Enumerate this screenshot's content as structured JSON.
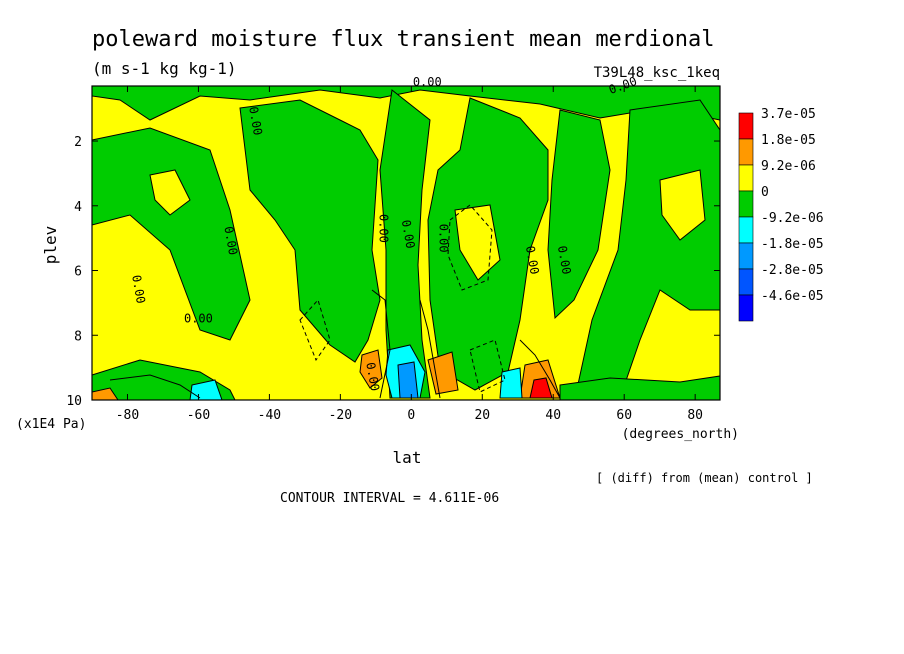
{
  "chart_data": {
    "type": "heatmap",
    "title": "poleward moisture flux transient mean merdional",
    "subtitle": "(m s-1 kg kg-1)",
    "run_label": "T39L48_ksc_1keq",
    "xlabel": "lat",
    "x_unit": "(degrees_north)",
    "ylabel": "plev",
    "y_unit": "(x1E4 Pa)",
    "xlim": [
      -90,
      87
    ],
    "ylim": [
      10,
      0.3
    ],
    "x_ticks": [
      -80,
      -60,
      -40,
      -20,
      0,
      20,
      40,
      60,
      80
    ],
    "y_ticks": [
      2,
      4,
      6,
      8,
      10
    ],
    "contour_labels": [
      "0.00",
      "0.00",
      "0.00",
      "0.00",
      "0.00",
      "0.00",
      "0.00",
      "0.00",
      "0.00",
      "0.00",
      "0.00",
      "0.00"
    ],
    "footnote": "[ (diff) from (mean) control ]",
    "contour_interval": "CONTOUR INTERVAL = 4.611E-06",
    "legend": {
      "placement": "right",
      "levels": [
        {
          "label": "3.7e-05",
          "color": "#ff0000"
        },
        {
          "label": "1.8e-05",
          "color": "#ff9900"
        },
        {
          "label": "9.2e-06",
          "color": "#ffff00"
        },
        {
          "label": "0",
          "color": "#00cc00"
        },
        {
          "label": "-9.2e-06",
          "color": "#00ffff"
        },
        {
          "label": "-1.8e-05",
          "color": "#0099ff"
        },
        {
          "label": "-2.8e-05",
          "color": "#0055ff"
        },
        {
          "label": "-4.6e-05",
          "color": "#0000ff"
        }
      ]
    },
    "colors": {
      "yellow": "#ffff00",
      "green": "#00cc00",
      "orange": "#ff9900",
      "red": "#ff0000",
      "cyan": "#00ffff",
      "blue": "#0099ff"
    }
  }
}
